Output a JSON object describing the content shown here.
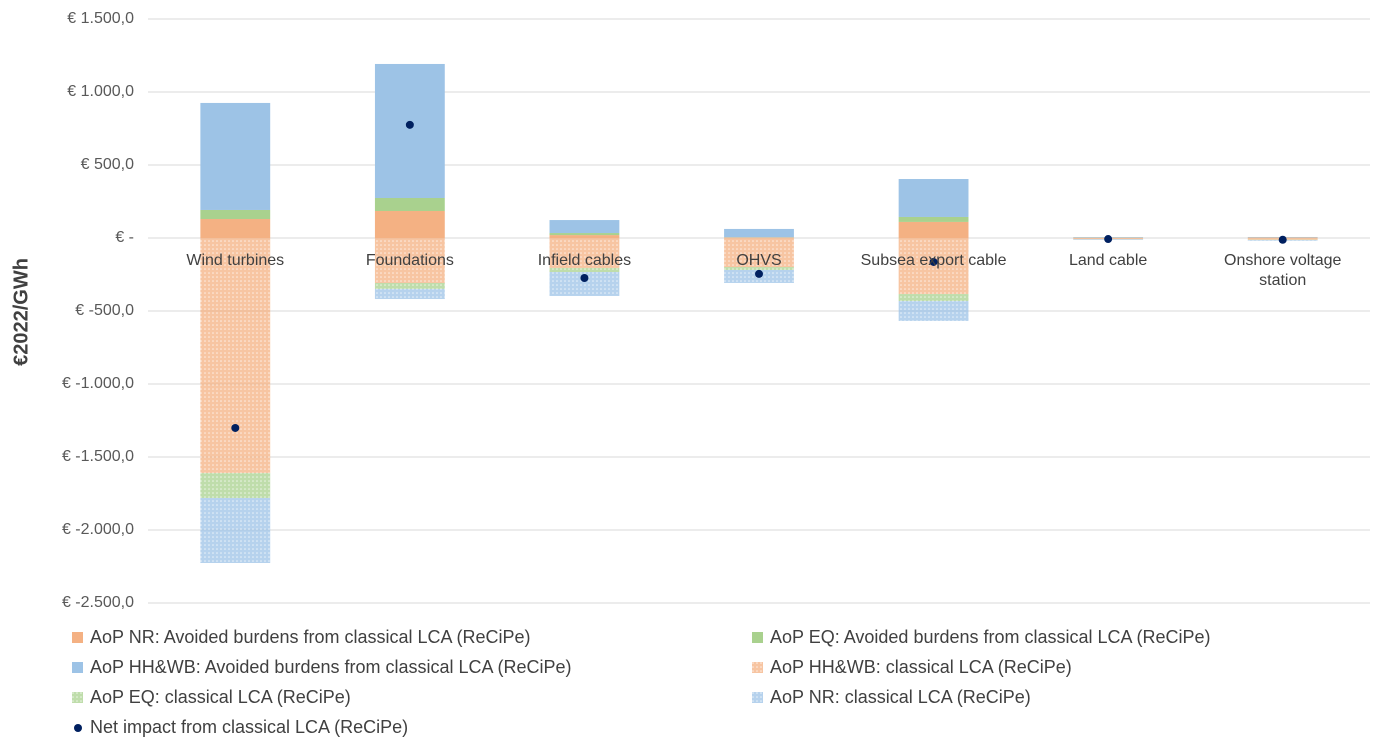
{
  "chart_data": {
    "type": "bar",
    "stacked": true,
    "y_label": "€2022/GWh",
    "categories": [
      "Wind turbines",
      "Foundations",
      "Infield cables",
      "OHVS",
      "Subsea export cable",
      "Land cable",
      "Onshore voltage station"
    ],
    "ylim": [
      -2500,
      1500
    ],
    "yticks": [
      {
        "value": -2500,
        "label": "€ -2.500,0"
      },
      {
        "value": -2000,
        "label": "€ -2.000,0"
      },
      {
        "value": -1500,
        "label": "€ -1.500,0"
      },
      {
        "value": -1000,
        "label": "€ -1.000,0"
      },
      {
        "value": -500,
        "label": "€ -500,0"
      },
      {
        "value": 0,
        "label": "€ -"
      },
      {
        "value": 500,
        "label": "€ 500,0"
      },
      {
        "value": 1000,
        "label": "€ 1.000,0"
      },
      {
        "value": 1500,
        "label": "€ 1.500,0"
      }
    ],
    "grid": true,
    "series": [
      {
        "name": "AoP NR: Avoided burdens from classical LCA (ReCiPe)",
        "color": "#f4b183",
        "values": [
          130,
          185,
          20,
          3,
          110,
          2,
          3
        ]
      },
      {
        "name": "AoP EQ: Avoided burdens from classical LCA (ReCiPe)",
        "color": "#a9d18e",
        "values": [
          62,
          89,
          14,
          2,
          34,
          1,
          1
        ]
      },
      {
        "name": "AoP HH&WB: Avoided burdens from classical LCA (ReCiPe)",
        "color": "#9dc3e6",
        "values": [
          733,
          918,
          89,
          57,
          260,
          3,
          3
        ]
      },
      {
        "name": "AoP HH&WB: classical LCA (ReCiPe)",
        "color": "#f4b183",
        "pattern": true,
        "values": [
          -1610,
          -308,
          -205,
          -199,
          -384,
          -8,
          -12
        ]
      },
      {
        "name": "AoP EQ: classical LCA (ReCiPe)",
        "color": "#a9d18e",
        "pattern": true,
        "values": [
          -171,
          -41,
          -28,
          -20,
          -48,
          -1,
          -2
        ]
      },
      {
        "name": "AoP NR: classical LCA (ReCiPe)",
        "color": "#9dc3e6",
        "pattern": true,
        "values": [
          -445,
          -69,
          -164,
          -89,
          -136,
          -4,
          -5
        ]
      },
      {
        "name": "Net impact from classical LCA (ReCiPe)",
        "color": "#002060",
        "type": "scatter",
        "values": [
          -1301,
          775,
          -274,
          -246,
          -164,
          -7,
          -12
        ]
      }
    ]
  }
}
